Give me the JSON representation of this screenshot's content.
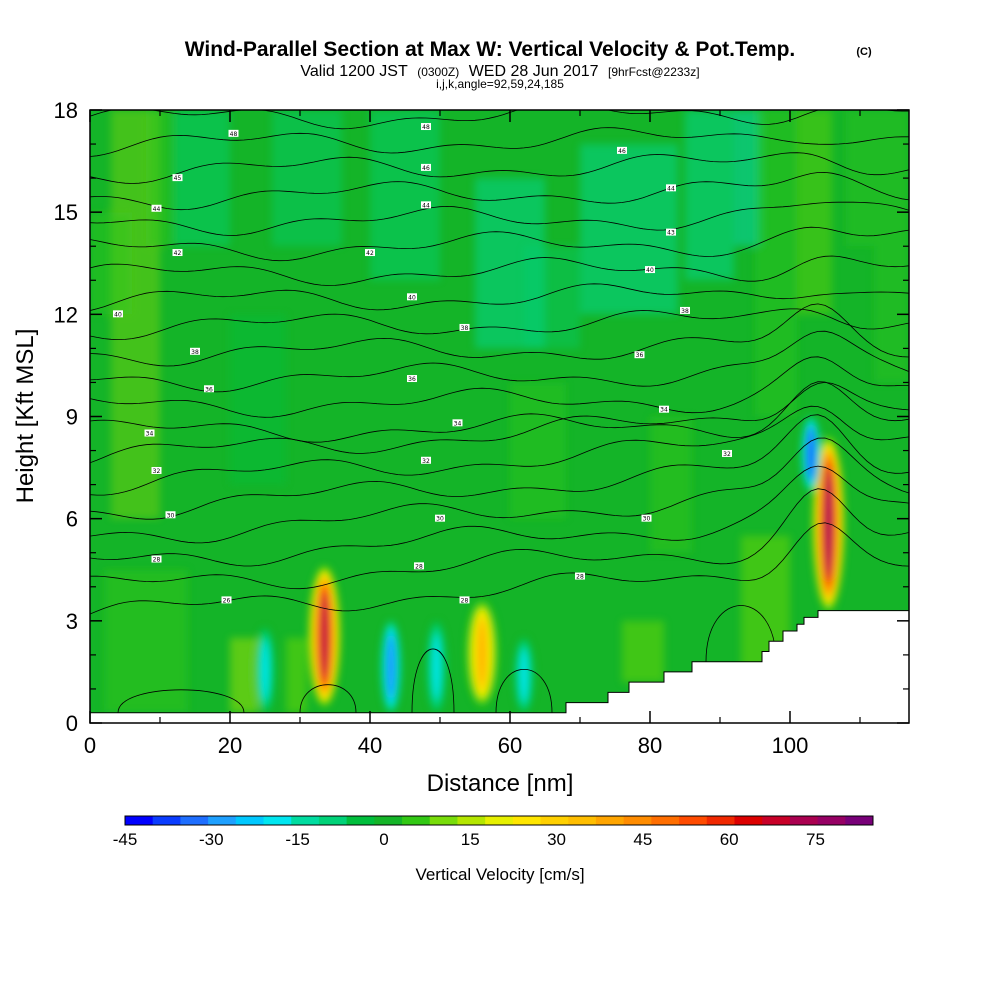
{
  "title": {
    "main": "Wind-Parallel Section at Max W: Vertical Velocity & Pot.Temp.",
    "copyright": "(C)",
    "valid_prefix": "Valid 1200 JST",
    "valid_utc": "(0300Z)",
    "valid_date": "WED 28 Jun 2017",
    "forecast": "[9hrFcst@2233z]",
    "indices": "i,j,k,angle=92,59,24,185"
  },
  "chart_data": {
    "type": "heatmap",
    "xlabel": "Distance [nm]",
    "ylabel": "Height [Kft MSL]",
    "xlim": [
      0,
      117
    ],
    "ylim": [
      0,
      18
    ],
    "x_ticks": [
      "0",
      "20",
      "40",
      "60",
      "80",
      "100"
    ],
    "y_ticks": [
      "0",
      "3",
      "6",
      "9",
      "12",
      "15",
      "18"
    ],
    "grid": false,
    "field": "Vertical Velocity",
    "overlay": "Potential temperature contours",
    "colorbar": {
      "title": "Vertical Velocity [cm/s]",
      "tick_labels": [
        "-45",
        "-30",
        "-15",
        "0",
        "15",
        "30",
        "45",
        "60",
        "75"
      ],
      "range": [
        -45,
        85
      ],
      "step": 5,
      "colors": [
        "#0000ff",
        "#0a3cff",
        "#1e6eff",
        "#1ea0ff",
        "#00c8ff",
        "#00e6f0",
        "#00dca0",
        "#00d278",
        "#00be3c",
        "#14b428",
        "#32c814",
        "#78dc0a",
        "#b4e600",
        "#e6f000",
        "#ffe600",
        "#ffd000",
        "#ffbe00",
        "#ffa500",
        "#ff8c00",
        "#ff6e00",
        "#ff4b00",
        "#f02800",
        "#dc0000",
        "#c80028",
        "#aa0050",
        "#960064",
        "#780078"
      ]
    },
    "updrafts": [
      {
        "x": 33.5,
        "z_bottom": 0.5,
        "z_top": 4.6,
        "w_max": 75
      },
      {
        "x": 56,
        "z_bottom": 0.5,
        "z_top": 3.6,
        "w_max": 40
      },
      {
        "x": 105.5,
        "z_bottom": 3.3,
        "z_top": 8.4,
        "w_max": 80
      }
    ],
    "downdrafts": [
      {
        "x": 25,
        "z_bottom": 0.3,
        "z_top": 2.8,
        "w_min": -20
      },
      {
        "x": 43,
        "z_bottom": 0.3,
        "z_top": 3.0,
        "w_min": -35
      },
      {
        "x": 49.5,
        "z_bottom": 0.3,
        "z_top": 3.0,
        "w_min": -20
      },
      {
        "x": 62,
        "z_bottom": 0.3,
        "z_top": 2.5,
        "w_min": -20
      },
      {
        "x": 103,
        "z_bottom": 6.8,
        "z_top": 9.0,
        "w_min": -40
      }
    ],
    "terrain": {
      "x": [
        0,
        68,
        68,
        74,
        74,
        77,
        77,
        82,
        82,
        86,
        86,
        96,
        96,
        97,
        97,
        99,
        99,
        101,
        101,
        102,
        102,
        104,
        104,
        117
      ],
      "z": [
        0.3,
        0.3,
        0.6,
        0.6,
        0.9,
        0.9,
        1.2,
        1.2,
        1.5,
        1.5,
        1.8,
        1.8,
        2.1,
        2.1,
        2.4,
        2.4,
        2.7,
        2.7,
        2.9,
        2.9,
        3.1,
        3.1,
        3.3,
        3.3
      ]
    },
    "isentropes": {
      "levels_celsius": [
        26,
        27,
        28,
        29,
        30,
        31,
        32,
        33,
        34,
        35,
        36,
        37,
        38,
        39,
        40,
        41,
        42,
        43,
        44,
        45,
        46
      ],
      "labels": [
        {
          "text": "26",
          "x": 19.5,
          "z": 3.6
        },
        {
          "text": "28",
          "x": 9.5,
          "z": 4.8
        },
        {
          "text": "28",
          "x": 47,
          "z": 4.6
        },
        {
          "text": "28",
          "x": 53.5,
          "z": 3.6
        },
        {
          "text": "28",
          "x": 70,
          "z": 4.3
        },
        {
          "text": "30",
          "x": 11.5,
          "z": 6.1
        },
        {
          "text": "30",
          "x": 50,
          "z": 6.0
        },
        {
          "text": "30",
          "x": 79.5,
          "z": 6.0
        },
        {
          "text": "32",
          "x": 9.5,
          "z": 7.4
        },
        {
          "text": "32",
          "x": 48,
          "z": 7.7
        },
        {
          "text": "32",
          "x": 91,
          "z": 7.9
        },
        {
          "text": "34",
          "x": 8.5,
          "z": 8.5
        },
        {
          "text": "34",
          "x": 52.5,
          "z": 8.8
        },
        {
          "text": "34",
          "x": 82,
          "z": 9.2
        },
        {
          "text": "36",
          "x": 17,
          "z": 9.8
        },
        {
          "text": "36",
          "x": 46,
          "z": 10.1
        },
        {
          "text": "36",
          "x": 78.5,
          "z": 10.8
        },
        {
          "text": "38",
          "x": 15,
          "z": 10.9
        },
        {
          "text": "38",
          "x": 53.5,
          "z": 11.6
        },
        {
          "text": "38",
          "x": 85,
          "z": 12.1
        },
        {
          "text": "40",
          "x": 4,
          "z": 12.0
        },
        {
          "text": "40",
          "x": 46,
          "z": 12.5
        },
        {
          "text": "40",
          "x": 80,
          "z": 13.3
        },
        {
          "text": "42",
          "x": 12.5,
          "z": 13.8
        },
        {
          "text": "42",
          "x": 40,
          "z": 13.8
        },
        {
          "text": "43",
          "x": 83,
          "z": 14.4
        },
        {
          "text": "44",
          "x": 9.5,
          "z": 15.1
        },
        {
          "text": "44",
          "x": 48,
          "z": 15.2
        },
        {
          "text": "44",
          "x": 83,
          "z": 15.7
        },
        {
          "text": "45",
          "x": 12.5,
          "z": 16.0
        },
        {
          "text": "46",
          "x": 48,
          "z": 16.3
        },
        {
          "text": "46",
          "x": 76,
          "z": 16.8
        },
        {
          "text": "48",
          "x": 20.5,
          "z": 17.3
        },
        {
          "text": "48",
          "x": 48,
          "z": 17.5
        }
      ]
    }
  }
}
